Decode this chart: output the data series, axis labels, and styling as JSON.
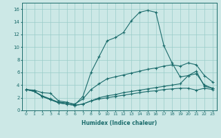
{
  "xlabel": "Humidex (Indice chaleur)",
  "xlim": [
    -0.5,
    23.5
  ],
  "ylim": [
    0,
    17
  ],
  "xticks": [
    0,
    1,
    2,
    3,
    4,
    5,
    6,
    7,
    8,
    9,
    10,
    11,
    12,
    13,
    14,
    15,
    16,
    17,
    18,
    19,
    20,
    21,
    22,
    23
  ],
  "yticks": [
    0,
    2,
    4,
    6,
    8,
    10,
    12,
    14,
    16
  ],
  "bg_color": "#cce8e6",
  "grid_color": "#99ccc8",
  "line_color": "#1a6b6b",
  "lines": [
    [
      3.3,
      3.2,
      2.8,
      2.7,
      1.5,
      1.3,
      0.9,
      2.2,
      6.0,
      8.5,
      11.0,
      11.5,
      12.3,
      14.2,
      15.5,
      15.8,
      15.5,
      10.2,
      7.5,
      5.3,
      5.5,
      6.2,
      3.8,
      3.5
    ],
    [
      3.3,
      3.0,
      2.3,
      1.8,
      1.3,
      1.2,
      1.0,
      1.8,
      3.3,
      4.2,
      5.0,
      5.3,
      5.6,
      5.9,
      6.2,
      6.5,
      6.7,
      7.0,
      7.2,
      7.0,
      7.5,
      7.2,
      5.5,
      4.5
    ],
    [
      3.3,
      3.0,
      2.2,
      1.7,
      1.2,
      1.0,
      0.8,
      1.0,
      1.5,
      2.0,
      2.3,
      2.5,
      2.8,
      3.0,
      3.2,
      3.4,
      3.6,
      3.8,
      4.0,
      4.2,
      5.5,
      5.8,
      4.0,
      3.5
    ],
    [
      3.3,
      3.0,
      2.2,
      1.7,
      1.2,
      1.0,
      0.8,
      1.0,
      1.5,
      1.8,
      2.0,
      2.2,
      2.4,
      2.6,
      2.8,
      3.0,
      3.1,
      3.3,
      3.4,
      3.5,
      3.5,
      3.2,
      3.5,
      3.3
    ]
  ]
}
